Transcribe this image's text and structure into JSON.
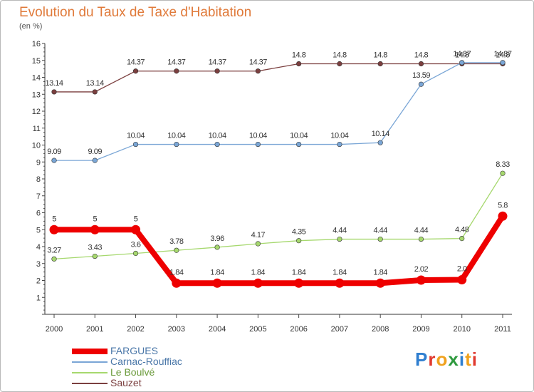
{
  "title": "Evolution du Taux de Taxe d'Habitation",
  "subtitle": "(en %)",
  "logo": {
    "text": "Proxiti"
  },
  "chart_data": {
    "type": "line",
    "title": "Evolution du Taux de Taxe d'Habitation",
    "ylabel": "(en %)",
    "x": [
      "2000",
      "2001",
      "2002",
      "2003",
      "2004",
      "2005",
      "2006",
      "2007",
      "2008",
      "2009",
      "2010",
      "2011"
    ],
    "ylim": [
      0,
      16
    ],
    "yticks": [
      1,
      2,
      3,
      4,
      5,
      6,
      7,
      8,
      9,
      10,
      11,
      12,
      13,
      14,
      15,
      16
    ],
    "grid": false,
    "legend_position": "bottom-left",
    "series": [
      {
        "name": "FARGUES",
        "color": "#ee0000",
        "values": [
          5,
          5,
          5,
          1.84,
          1.84,
          1.84,
          1.84,
          1.84,
          1.84,
          2.02,
          2.04,
          5.8
        ],
        "labels": [
          "5",
          "5",
          "5",
          "1.84",
          "1.84",
          "1.84",
          "1.84",
          "1.84",
          "1.84",
          "2.02",
          "2.0",
          "5.8"
        ]
      },
      {
        "name": "Carnac-Rouffiac",
        "color": "#7aa6d6",
        "values": [
          9.09,
          9.09,
          10.04,
          10.04,
          10.04,
          10.04,
          10.04,
          10.04,
          10.14,
          13.59,
          14.87,
          14.87
        ],
        "labels": [
          "9.09",
          "9.09",
          "10.04",
          "10.04",
          "10.04",
          "10.04",
          "10.04",
          "10.04",
          "10.14",
          "13.59",
          "14.87",
          "14.87"
        ]
      },
      {
        "name": "Le Boulvé",
        "color": "#a6d86e",
        "values": [
          3.27,
          3.43,
          3.6,
          3.78,
          3.96,
          4.17,
          4.35,
          4.44,
          4.44,
          4.44,
          4.48,
          8.33
        ],
        "labels": [
          "3.27",
          "3.43",
          "3.6",
          "3.78",
          "3.96",
          "4.17",
          "4.35",
          "4.44",
          "4.44",
          "4.44",
          "4.48",
          "8.33"
        ]
      },
      {
        "name": "Sauzet",
        "color": "#7b3f3f",
        "values": [
          13.14,
          13.14,
          14.37,
          14.37,
          14.37,
          14.37,
          14.8,
          14.8,
          14.8,
          14.8,
          14.8,
          14.8
        ],
        "labels": [
          "13.14",
          "13.14",
          "14.37",
          "14.37",
          "14.37",
          "14.37",
          "14.8",
          "14.8",
          "14.8",
          "14.8",
          "14.8",
          "14.8"
        ]
      }
    ]
  }
}
